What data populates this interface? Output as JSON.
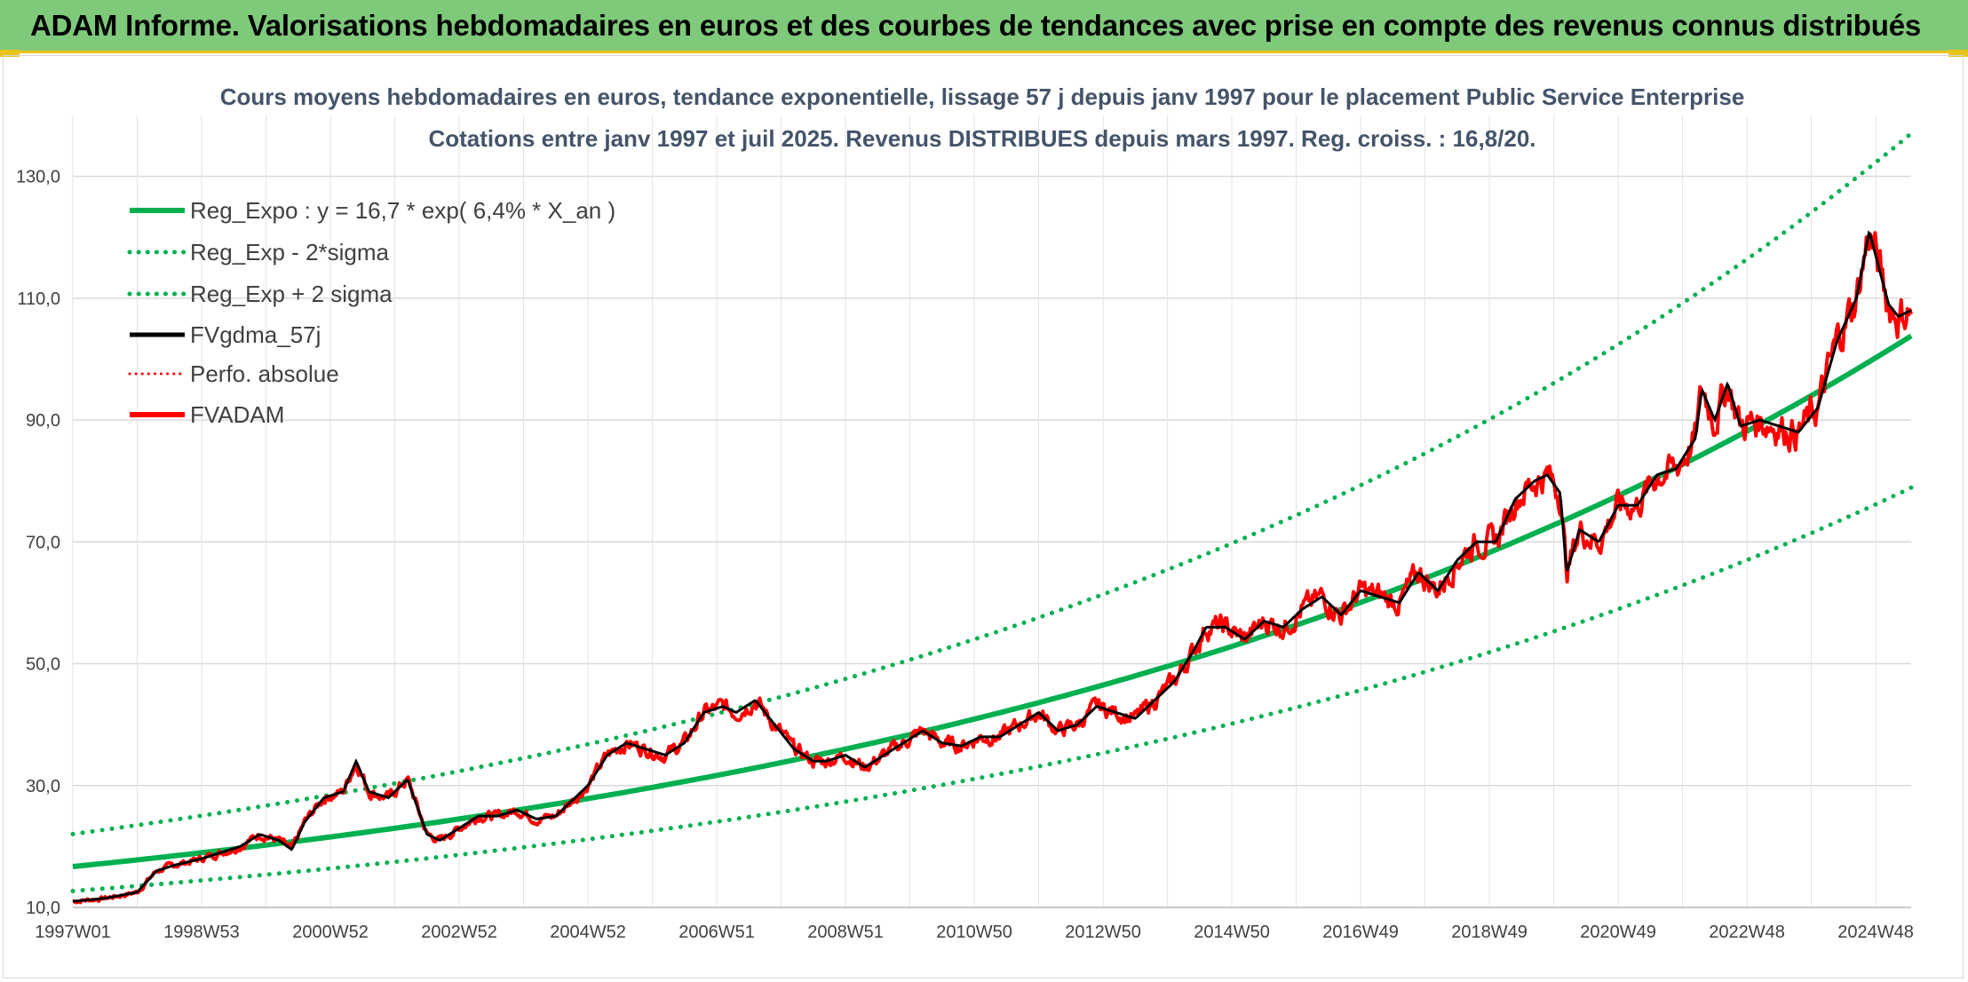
{
  "header": {
    "title": "ADAM Informe. Valorisations hebdomadaires en euros et des courbes de tendances avec prise en compte des revenus connus distribués"
  },
  "colors": {
    "banner": "#7fc97a",
    "accent": "#e9c21a",
    "trend": "#00b050",
    "smooth": "#000000",
    "adam": "#ff0000"
  },
  "chart_data": {
    "type": "line",
    "title": "Cours moyens hebdomadaires en euros, tendance exponentielle, lissage 57 j depuis janv 1997 pour le placement Public Service Enterprise",
    "subtitle": "Cotations entre janv 1997 et juil 2025. Revenus DISTRIBUES depuis mars 1997. Reg. croiss. : 16,8/20.",
    "xlabel": "",
    "ylabel": "",
    "xlim": [
      1997.0,
      2025.55
    ],
    "ylim": [
      10,
      140
    ],
    "yticks": [
      "10,0",
      "30,0",
      "50,0",
      "70,0",
      "90,0",
      "110,0",
      "130,0"
    ],
    "ytick_values": [
      10,
      30,
      50,
      70,
      90,
      110,
      130
    ],
    "xticks": [
      "1997W01",
      "1998W53",
      "2000W52",
      "2002W52",
      "2004W52",
      "2006W51",
      "2008W51",
      "2010W50",
      "2012W50",
      "2014W50",
      "2016W49",
      "2018W49",
      "2020W49",
      "2022W48",
      "2024W48"
    ],
    "xtick_values": [
      1997.0,
      1999.0,
      2001.0,
      2003.0,
      2005.0,
      2007.0,
      2009.0,
      2011.0,
      2013.0,
      2015.0,
      2017.0,
      2019.0,
      2021.0,
      2023.0,
      2025.0
    ],
    "grid": true,
    "legend_position": "top-left",
    "series": [
      {
        "name": "Reg_Expo : y = 16,7 * exp( 6,4% *  X_an )",
        "style": "solid-green",
        "formula": {
          "a": 16.7,
          "b": 0.064,
          "factor": 1.0
        }
      },
      {
        "name": "Reg_Exp - 2*sigma",
        "style": "dotted-green",
        "formula": {
          "a": 16.7,
          "b": 0.064,
          "factor": 0.76
        }
      },
      {
        "name": "Reg_Exp + 2 sigma",
        "style": "dotted-green",
        "formula": {
          "a": 16.7,
          "b": 0.064,
          "factor": 1.32
        }
      },
      {
        "name": "FVgdma_57j",
        "style": "solid-black",
        "x": [],
        "y": []
      },
      {
        "name": "Perfo. absolue",
        "style": "dotted-red",
        "x": [],
        "y": []
      },
      {
        "name": "FVADAM",
        "style": "solid-red",
        "x": [
          1997.0,
          1997.5,
          1998.0,
          1998.3,
          1998.6,
          1999.0,
          1999.3,
          1999.6,
          1999.9,
          2000.2,
          2000.4,
          2000.6,
          2000.9,
          2001.2,
          2001.4,
          2001.6,
          2001.9,
          2002.2,
          2002.5,
          2002.7,
          2003.0,
          2003.3,
          2003.6,
          2003.9,
          2004.2,
          2004.5,
          2004.7,
          2005.0,
          2005.3,
          2005.6,
          2005.9,
          2006.2,
          2006.5,
          2006.8,
          2007.1,
          2007.3,
          2007.6,
          2007.9,
          2008.2,
          2008.5,
          2008.7,
          2009.0,
          2009.3,
          2009.6,
          2009.9,
          2010.2,
          2010.5,
          2010.8,
          2011.1,
          2011.4,
          2011.7,
          2012.0,
          2012.3,
          2012.6,
          2012.9,
          2013.2,
          2013.5,
          2013.8,
          2014.1,
          2014.4,
          2014.6,
          2014.9,
          2015.2,
          2015.5,
          2015.8,
          2016.1,
          2016.4,
          2016.7,
          2017.0,
          2017.3,
          2017.6,
          2017.9,
          2018.2,
          2018.5,
          2018.8,
          2019.1,
          2019.4,
          2019.7,
          2019.9,
          2020.1,
          2020.2,
          2020.4,
          2020.7,
          2021.0,
          2021.3,
          2021.6,
          2021.9,
          2022.2,
          2022.3,
          2022.5,
          2022.7,
          2022.9,
          2023.2,
          2023.5,
          2023.8,
          2024.1,
          2024.4,
          2024.7,
          2024.9,
          2025.0,
          2025.2,
          2025.35,
          2025.55
        ],
        "y": [
          11,
          11.5,
          12.5,
          16,
          17,
          18,
          19,
          20,
          22,
          21,
          19.5,
          24,
          28,
          29,
          34,
          29,
          28,
          31,
          22,
          21,
          23,
          25,
          25,
          26,
          24.5,
          25,
          27,
          30,
          35,
          37,
          36,
          35,
          37,
          42,
          43,
          42,
          44,
          40,
          36,
          34,
          34,
          35,
          33,
          35,
          37,
          39,
          37,
          36.5,
          38,
          38,
          40,
          42,
          39,
          40,
          43,
          42,
          41,
          44,
          47,
          52,
          56,
          56,
          54,
          57,
          56,
          59,
          61,
          58,
          62,
          61,
          60,
          65,
          62,
          67,
          70,
          70,
          77,
          80,
          81,
          78,
          65,
          72,
          70,
          76,
          76,
          81,
          82,
          87,
          95,
          90,
          96,
          89,
          90,
          89,
          88,
          92,
          103,
          110,
          121,
          117,
          109,
          107,
          108
        ]
      }
    ]
  }
}
